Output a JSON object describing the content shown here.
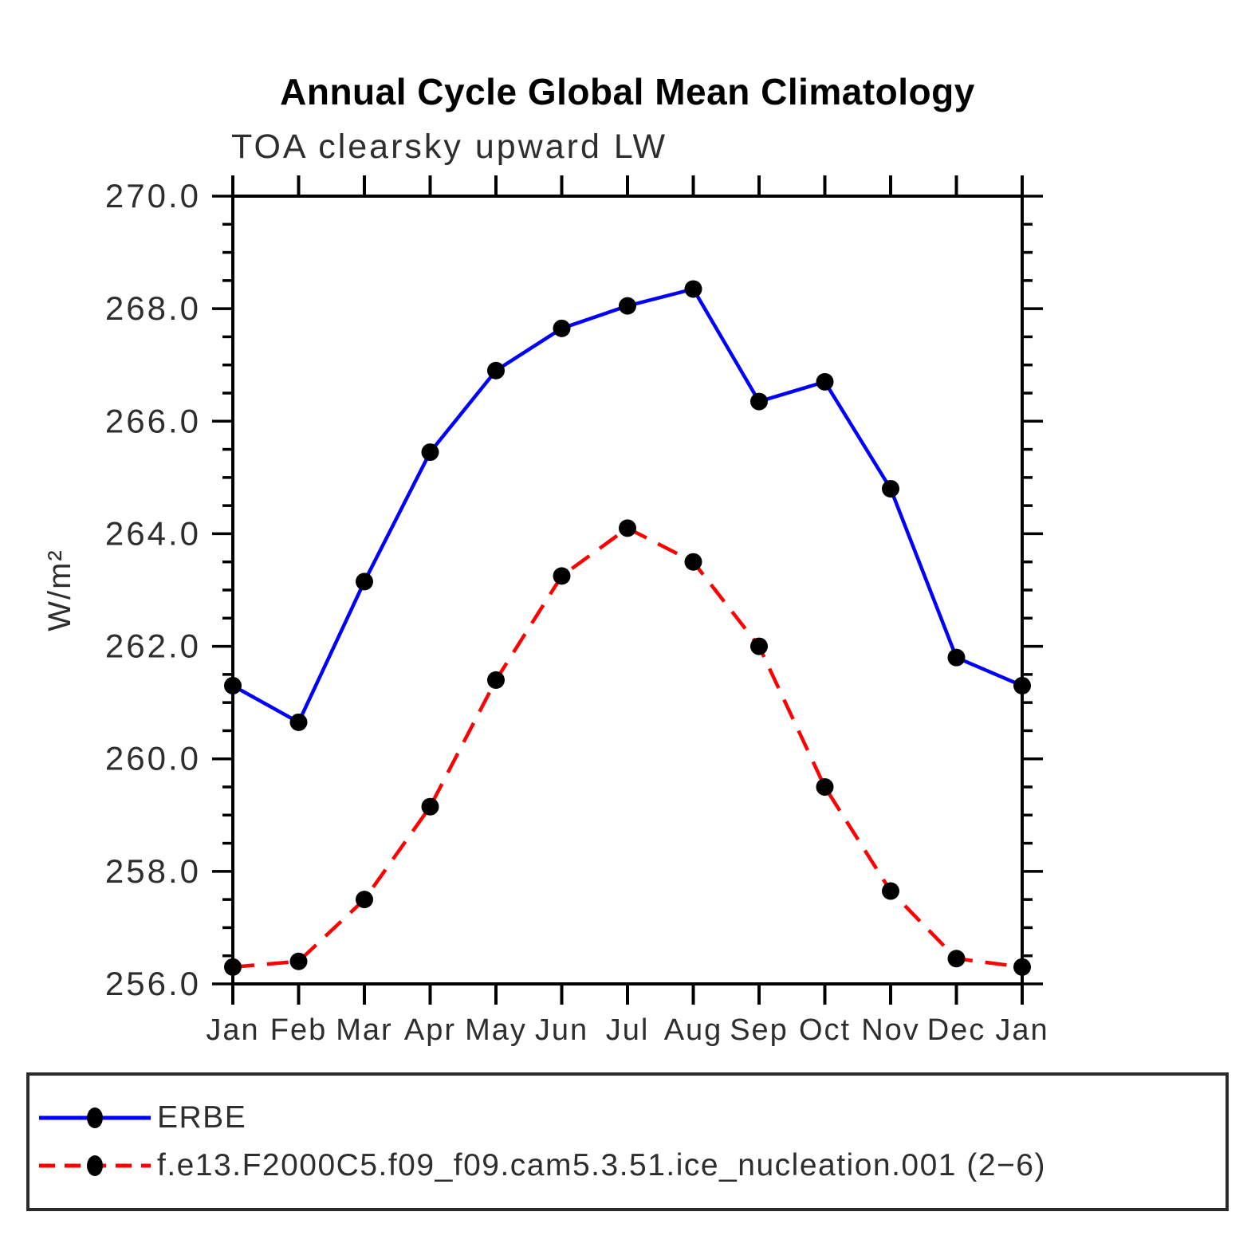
{
  "chart": {
    "title": "Annual Cycle Global Mean Climatology",
    "subtitle": "TOA clearsky upward LW"
  },
  "chart_data": {
    "type": "line",
    "title": "Annual Cycle Global Mean Climatology",
    "subtitle": "TOA clearsky upward LW",
    "xlabel": "",
    "ylabel": "W/m²",
    "categories": [
      "Jan",
      "Feb",
      "Mar",
      "Apr",
      "May",
      "Jun",
      "Jul",
      "Aug",
      "Sep",
      "Oct",
      "Nov",
      "Dec",
      "Jan"
    ],
    "series": [
      {
        "name": "ERBE",
        "color": "#0000ff",
        "line_style": "solid",
        "marker": "filled-circle",
        "marker_color": "#000000",
        "values": [
          261.3,
          260.65,
          263.15,
          265.45,
          266.9,
          267.65,
          268.05,
          268.35,
          266.35,
          266.7,
          264.8,
          261.8,
          261.3
        ]
      },
      {
        "name": "f.e13.F2000C5.f09_f09.cam5.3.51.ice_nucleation.001 (2−6)",
        "color": "#ff0000",
        "line_style": "dashed",
        "marker": "filled-circle",
        "marker_color": "#000000",
        "values": [
          256.3,
          256.4,
          257.5,
          259.15,
          261.4,
          263.25,
          264.1,
          263.5,
          262.0,
          259.5,
          257.65,
          256.45,
          256.3
        ]
      }
    ],
    "ylim": [
      256.0,
      270.0
    ],
    "y_major_step": 2.0,
    "y_minor_step": 0.5,
    "y_tick_labels": [
      "256.0",
      "258.0",
      "260.0",
      "262.0",
      "264.0",
      "266.0",
      "268.0",
      "270.0"
    ],
    "grid": false,
    "legend_position": "bottom",
    "axis_color": "#000000",
    "tick_label_color": "#2e2e2e"
  }
}
